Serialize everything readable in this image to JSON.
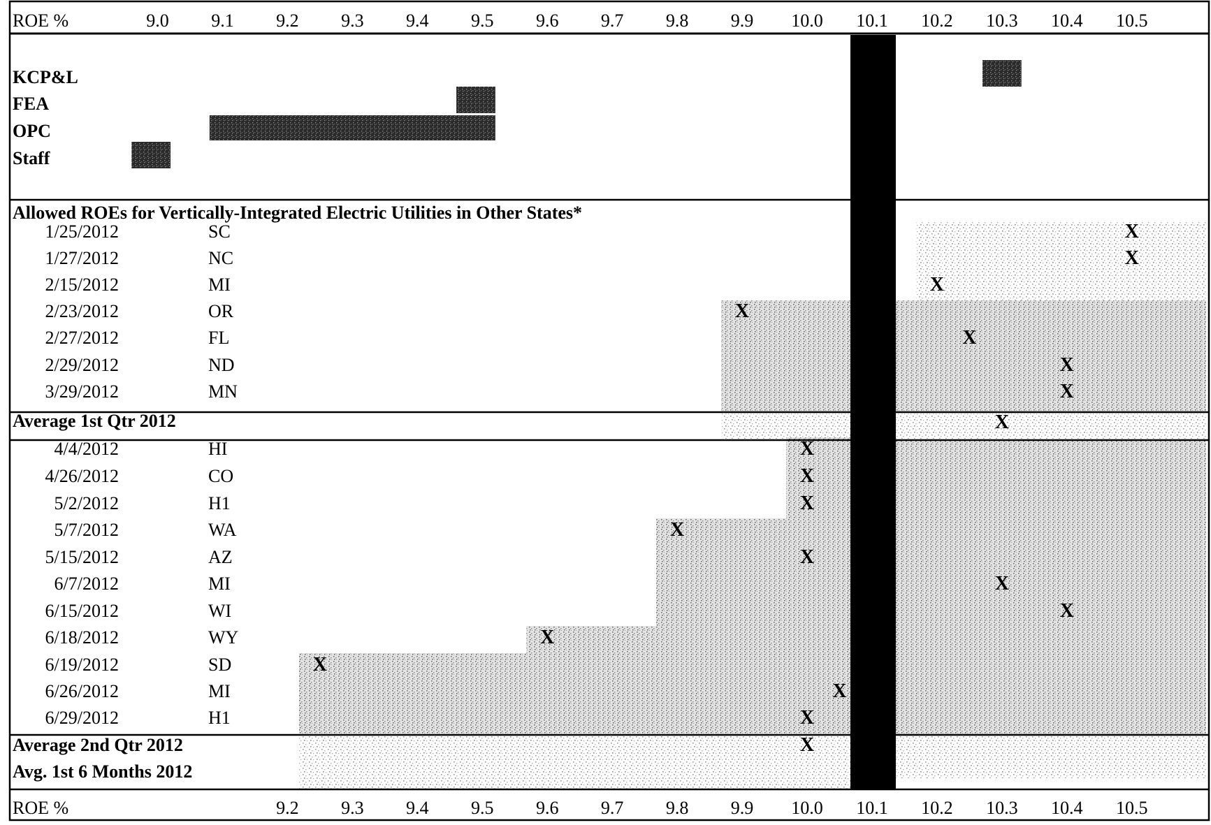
{
  "chart_data": {
    "type": "scatter",
    "axis_label": "ROE %",
    "top_ticks": [
      "9.0",
      "9.1",
      "9.2",
      "9.3",
      "9.4",
      "9.5",
      "9.6",
      "9.7",
      "9.8",
      "9.9",
      "10.0",
      "10.1",
      "10.2",
      "10.3",
      "10.4",
      "10.5"
    ],
    "bottom_ticks": [
      "9.2",
      "9.3",
      "9.4",
      "9.5",
      "9.6",
      "9.7",
      "9.8",
      "9.9",
      "10.0",
      "10.1",
      "10.2",
      "10.3",
      "10.4",
      "10.5"
    ],
    "xlim": [
      8.92,
      10.52
    ],
    "highlight_value": 10.1,
    "recommendations": [
      {
        "party": "KCP&L",
        "low": 10.27,
        "high": 10.33
      },
      {
        "party": "FEA",
        "low": 9.46,
        "high": 9.52
      },
      {
        "party": "OPC",
        "low": 9.08,
        "high": 9.52
      },
      {
        "party": "Staff",
        "low": 8.96,
        "high": 9.02
      }
    ],
    "section_title": "Allowed ROEs for Vertically-Integrated Electric Utilities in Other States*",
    "q1": [
      {
        "date": "1/25/2012",
        "state": "SC",
        "roe": 10.5
      },
      {
        "date": "1/27/2012",
        "state": "NC",
        "roe": 10.5
      },
      {
        "date": "2/15/2012",
        "state": "MI",
        "roe": 10.2
      },
      {
        "date": "2/23/2012",
        "state": "OR",
        "roe": 9.9
      },
      {
        "date": "2/27/2012",
        "state": "FL",
        "roe": 10.25
      },
      {
        "date": "2/29/2012",
        "state": "ND",
        "roe": 10.4
      },
      {
        "date": "3/29/2012",
        "state": "MN",
        "roe": 10.4
      }
    ],
    "q1_average": {
      "label": "Average 1st Qtr 2012",
      "roe": 10.3
    },
    "q2": [
      {
        "date": "4/4/2012",
        "state": "HI",
        "roe": 10.0
      },
      {
        "date": "4/26/2012",
        "state": "CO",
        "roe": 10.0
      },
      {
        "date": "5/2/2012",
        "state": "H1",
        "roe": 10.0
      },
      {
        "date": "5/7/2012",
        "state": "WA",
        "roe": 9.8
      },
      {
        "date": "5/15/2012",
        "state": "AZ",
        "roe": 10.0
      },
      {
        "date": "6/7/2012",
        "state": "MI",
        "roe": 10.3
      },
      {
        "date": "6/15/2012",
        "state": "WI",
        "roe": 10.4
      },
      {
        "date": "6/18/2012",
        "state": "WY",
        "roe": 9.6
      },
      {
        "date": "6/19/2012",
        "state": "SD",
        "roe": 9.25
      },
      {
        "date": "6/26/2012",
        "state": "MI",
        "roe": 10.05
      },
      {
        "date": "6/29/2012",
        "state": "H1",
        "roe": 10.0
      }
    ],
    "q2_average": {
      "label": "Average 2nd Qtr 2012",
      "roe": 10.0
    },
    "six_month_average": {
      "label": "Avg. 1st 6 Months 2012"
    },
    "marker": "X"
  }
}
